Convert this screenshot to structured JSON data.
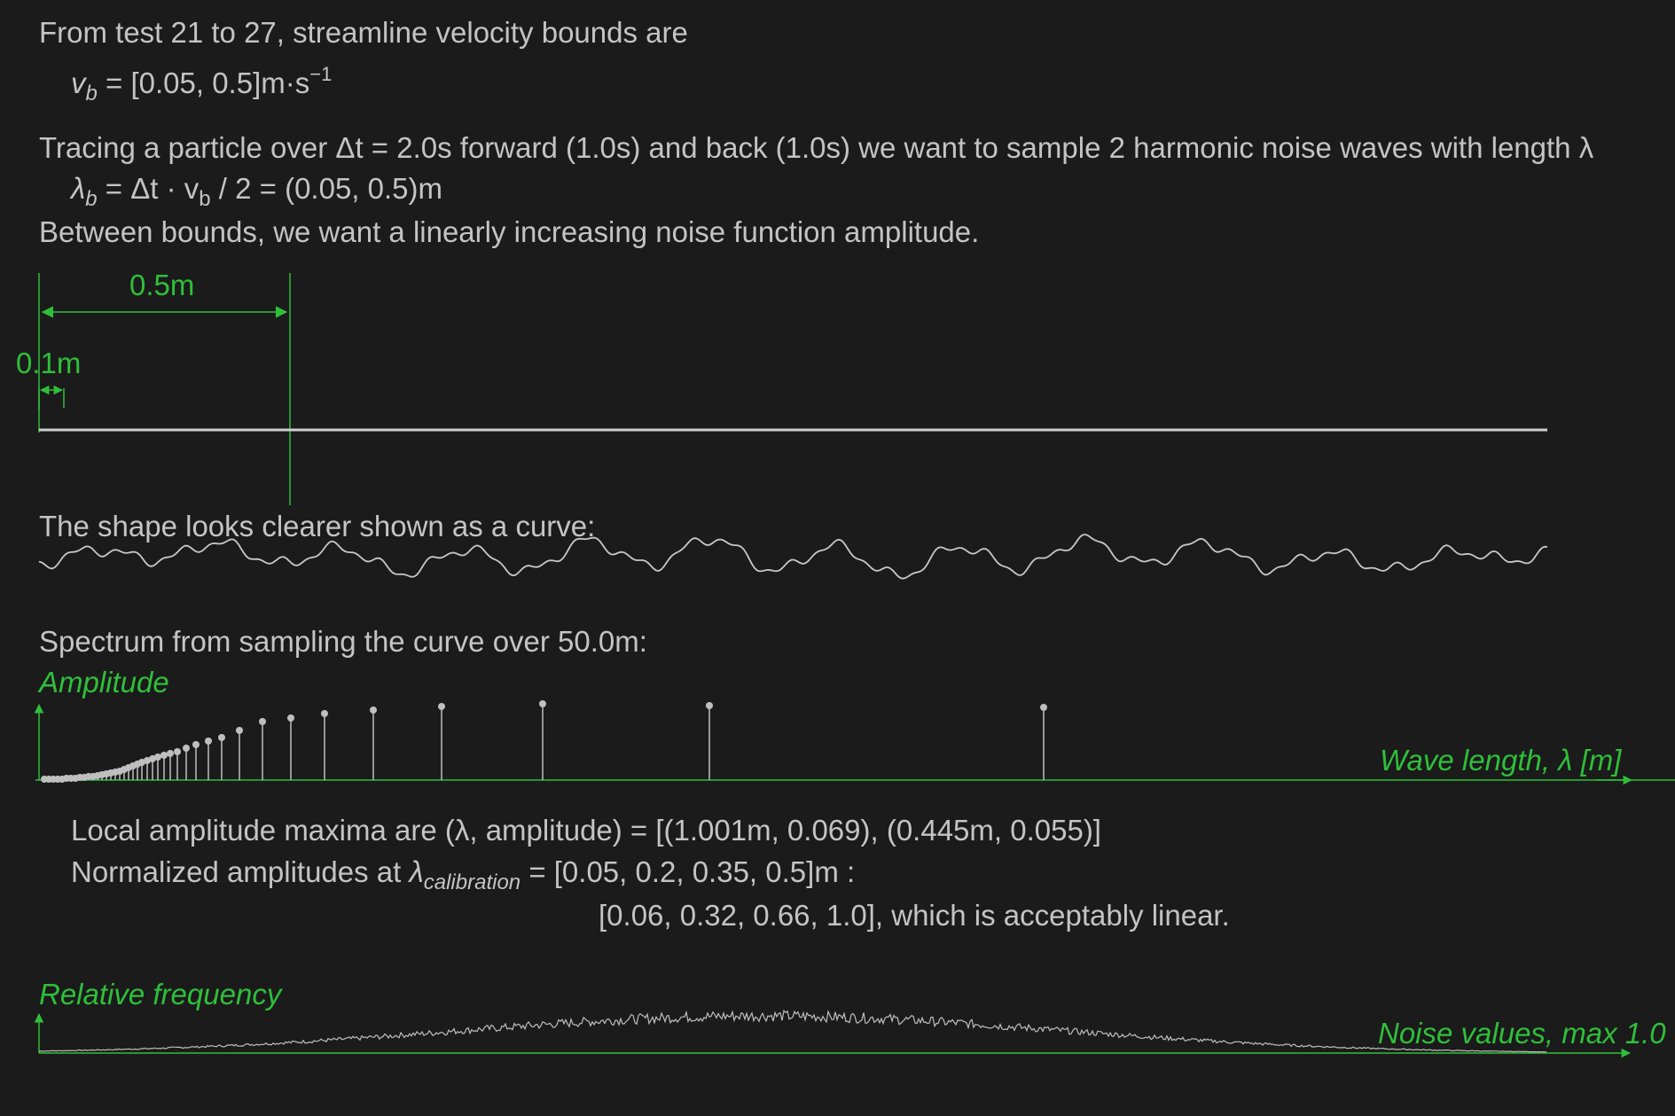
{
  "intro": {
    "line1": "From test 21 to 27, streamline velocity bounds are",
    "vb_symbol": "v",
    "vb_sub": "b",
    "vb_value": " = [0.05, 0.5]m·s",
    "vb_exp": "−1"
  },
  "tracing": {
    "line": "Tracing a particle over Δt = 2.0s forward (1.0s) and back (1.0s) we want to sample 2 harmonic noise waves with length λ",
    "lambda_symbol": "λ",
    "lambda_sub": "b",
    "lambda_eq_a": " = Δt · v",
    "lambda_eq_sub": "b",
    "lambda_eq_b": " / 2 = (0.05, 0.5)m",
    "between": "Between bounds, we want a linearly increasing noise function amplitude."
  },
  "dimensions": {
    "big_label": "0.5m",
    "small_label": "0.1m"
  },
  "curve_caption": "The shape looks clearer shown as a curve:",
  "spectrum": {
    "caption": "Spectrum from sampling the curve over 50.0m:",
    "y_label": "Amplitude",
    "x_label": "Wave length, λ [m]",
    "maxima": "Local amplitude maxima are (λ, amplitude) = [(1.001m, 0.069), (0.445m, 0.055)]",
    "normalized_a": "Normalized amplitudes at ",
    "normalized_lambda": "λ",
    "normalized_sub": "calibration",
    "normalized_b": " = [0.05, 0.2, 0.35, 0.5]m :",
    "normalized_values": "[0.06, 0.32, 0.66, 1.0], which is acceptably linear."
  },
  "histogram": {
    "y_label": "Relative frequency",
    "x_label": "Noise values, max 1.0"
  },
  "colors": {
    "background": "#1b1b1b",
    "text": "#c4c4c4",
    "accent_green": "#2fbf3a",
    "plot_gray": "#bfbfbf"
  }
}
